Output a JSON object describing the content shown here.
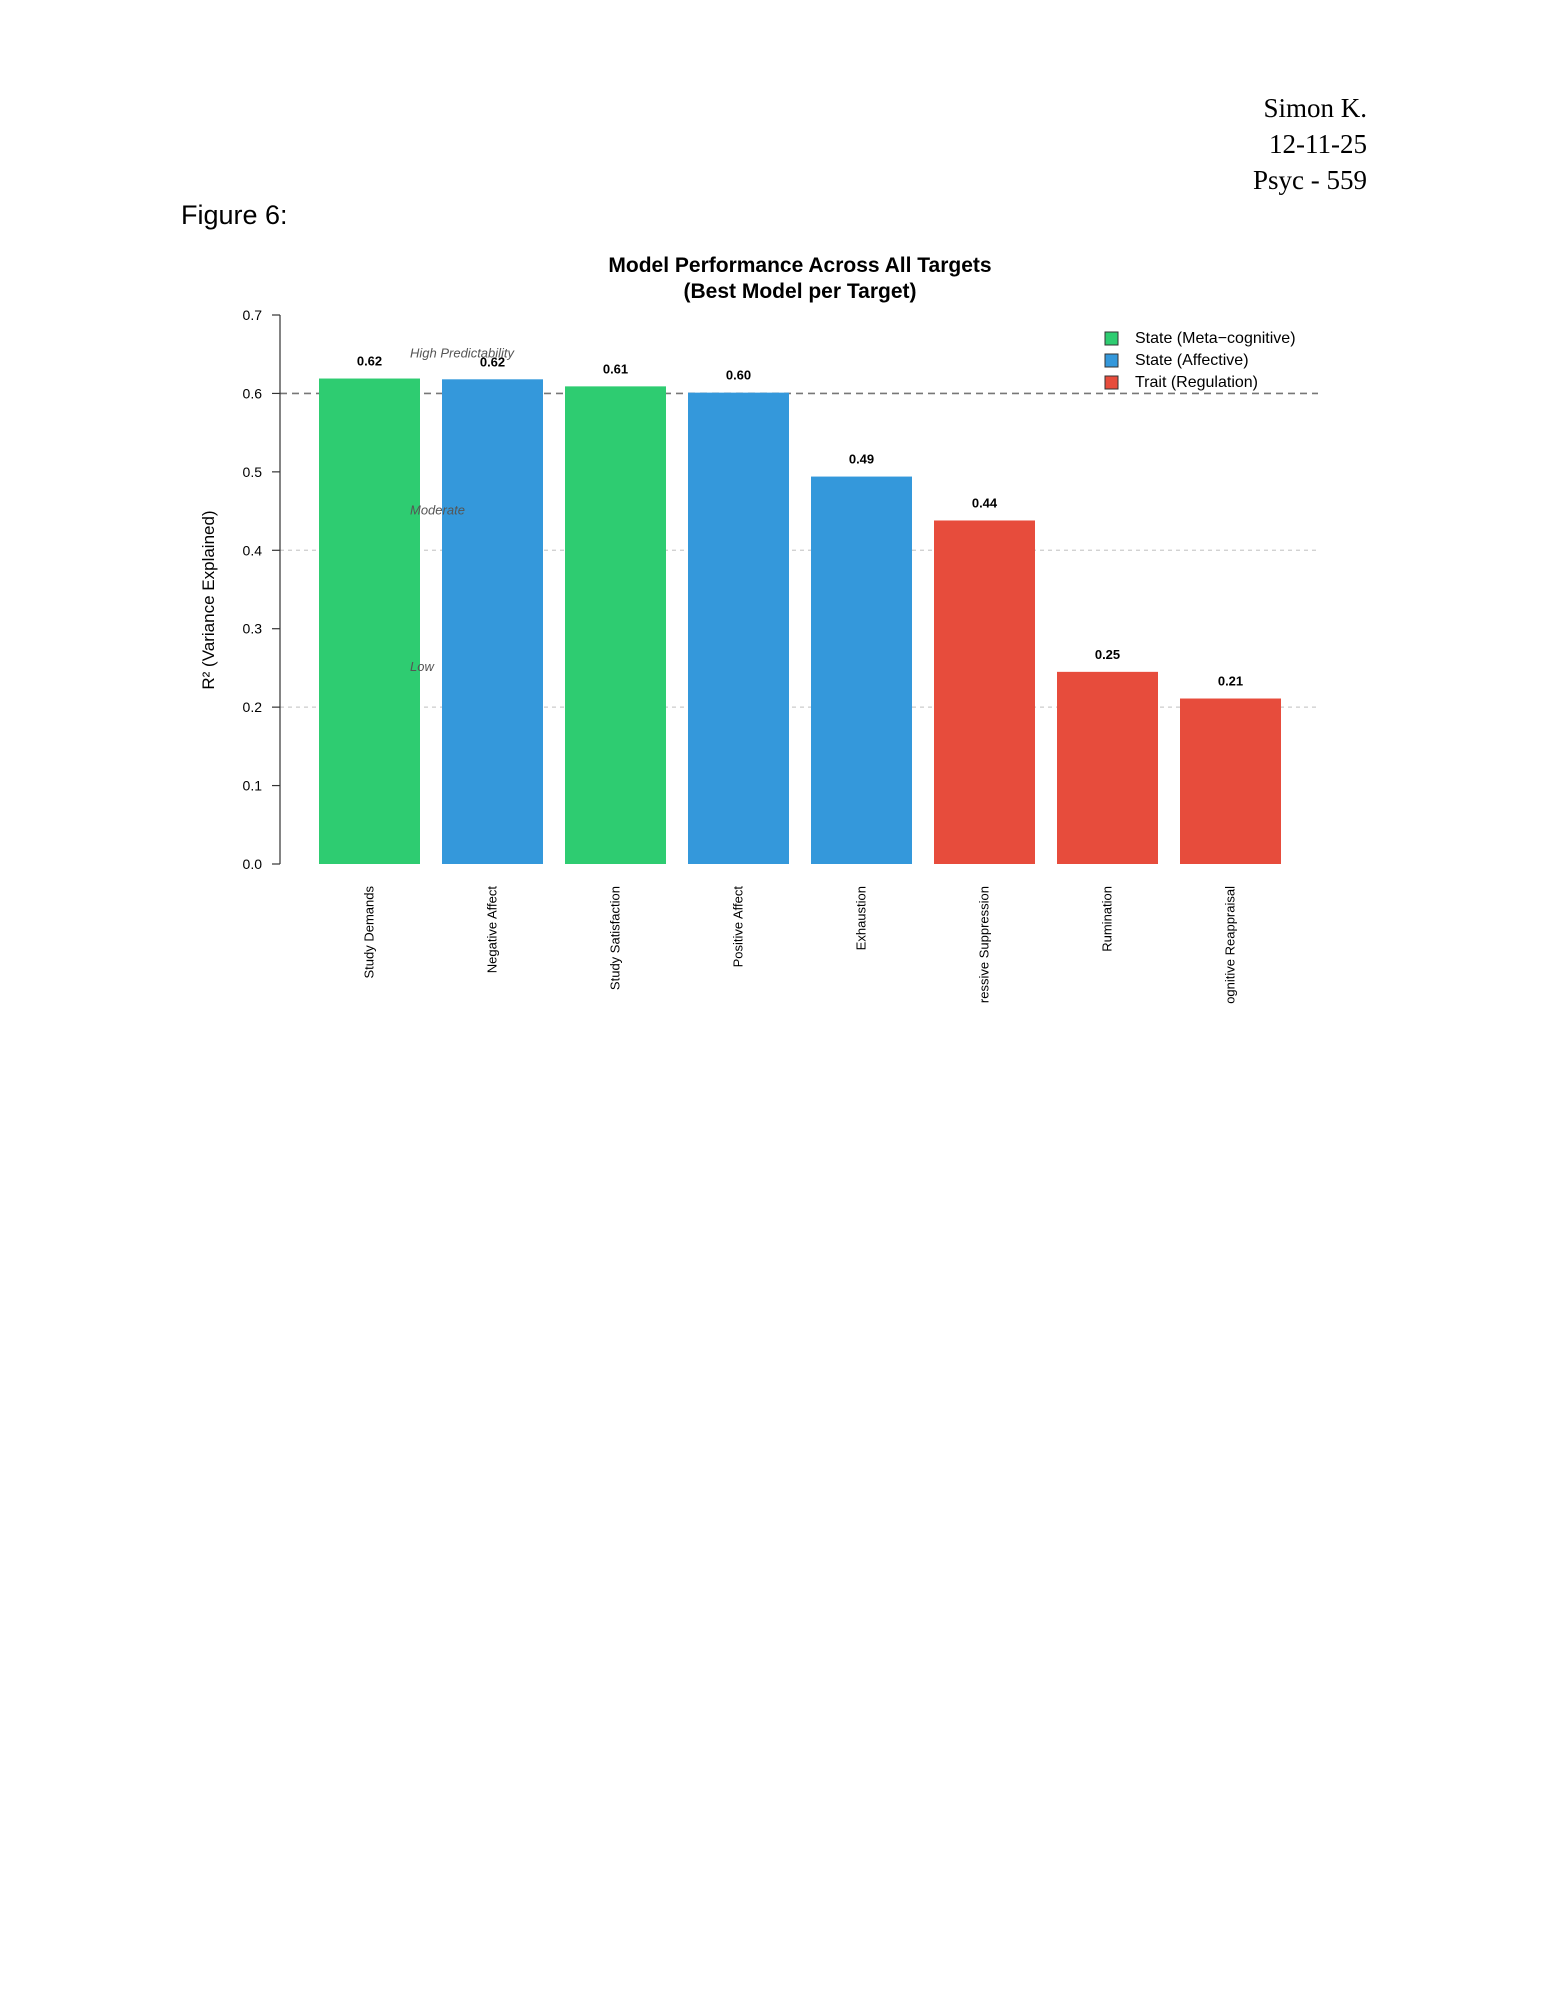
{
  "header": {
    "author": "Simon K.",
    "date": "12-11-25",
    "course": "Psyc - 559"
  },
  "figure_label": "Figure 6:",
  "chart_data": {
    "type": "bar",
    "title": "Model Performance Across All Targets",
    "subtitle": "(Best Model per Target)",
    "xlabel": "",
    "ylabel": "R² (Variance Explained)",
    "ylim": [
      0,
      0.7
    ],
    "yticks": [
      "0.0",
      "0.1",
      "0.2",
      "0.3",
      "0.4",
      "0.5",
      "0.6",
      "0.7"
    ],
    "categories": [
      "Study Demands",
      "Negative Affect",
      "Study Satisfaction",
      "Positive Affect",
      "Exhaustion",
      "ressive Suppression",
      "Rumination",
      "ognitive Reappraisal"
    ],
    "values": [
      0.619,
      0.618,
      0.609,
      0.601,
      0.494,
      0.438,
      0.245,
      0.211
    ],
    "value_labels": [
      "0.62",
      "0.62",
      "0.61",
      "0.60",
      "0.49",
      "0.44",
      "0.25",
      "0.21"
    ],
    "groups": [
      "State (Meta−cognitive)",
      "State (Affective)",
      "State (Meta−cognitive)",
      "State (Affective)",
      "State (Affective)",
      "Trait (Regulation)",
      "Trait (Regulation)",
      "Trait (Regulation)"
    ],
    "legend": {
      "placement": "top-right",
      "entries": [
        {
          "name": "State (Meta−cognitive)",
          "color": "#2ecc71"
        },
        {
          "name": "State (Affective)",
          "color": "#3498db"
        },
        {
          "name": "Trait (Regulation)",
          "color": "#e74c3c"
        }
      ]
    },
    "reference_lines": [
      {
        "value": 0.6,
        "label": "High Predictability",
        "style": "dashed-dark"
      },
      {
        "value": 0.4,
        "label": "Moderate",
        "style": "dotted-light"
      },
      {
        "value": 0.2,
        "label": "Low",
        "style": "dotted-light"
      }
    ],
    "grid": false
  }
}
